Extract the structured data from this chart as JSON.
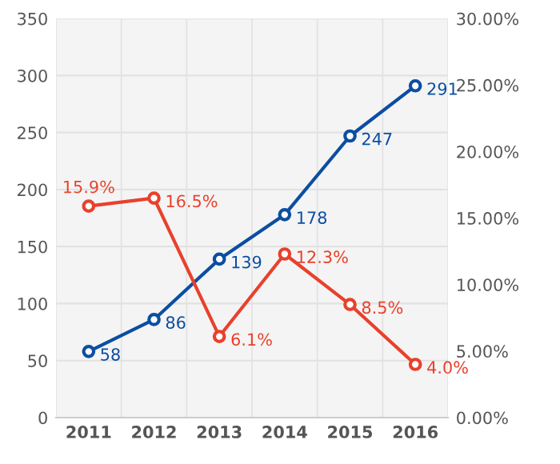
{
  "chart_data": {
    "type": "line",
    "categories": [
      "2011",
      "2012",
      "2013",
      "2014",
      "2015",
      "2016"
    ],
    "series": [
      {
        "color": "#0b4ea2",
        "values": [
          58,
          86,
          139,
          178,
          247,
          291
        ],
        "value_labels": [
          "58",
          "86",
          "139",
          "178",
          "247",
          "291"
        ]
      },
      {
        "color": "#e8412c",
        "axis": "y2",
        "values": [
          15.9,
          16.5,
          6.1,
          12.3,
          8.5,
          4.0
        ],
        "value_labels": [
          "15.9%",
          "16.5%",
          "6.1%",
          "12.3%",
          "8.5%",
          "4.0%"
        ]
      }
    ],
    "ylim": [
      0,
      350
    ],
    "yticks": [
      0,
      50,
      100,
      150,
      200,
      250,
      300,
      350
    ],
    "y2lim": [
      0,
      30
    ],
    "y2ticks": [
      {
        "value": 0,
        "label": "0.00%"
      },
      {
        "value": 5,
        "label": "5.00%"
      },
      {
        "value": 10,
        "label": "10.00%"
      },
      {
        "value": 15,
        "label": "15.00%"
      },
      {
        "value": 20,
        "label": "20.00%"
      },
      {
        "value": 25,
        "label": "25.00%"
      },
      {
        "value": 30,
        "label": "30.00%"
      }
    ],
    "grid": true,
    "marker": "circle",
    "line_style": "solid"
  }
}
